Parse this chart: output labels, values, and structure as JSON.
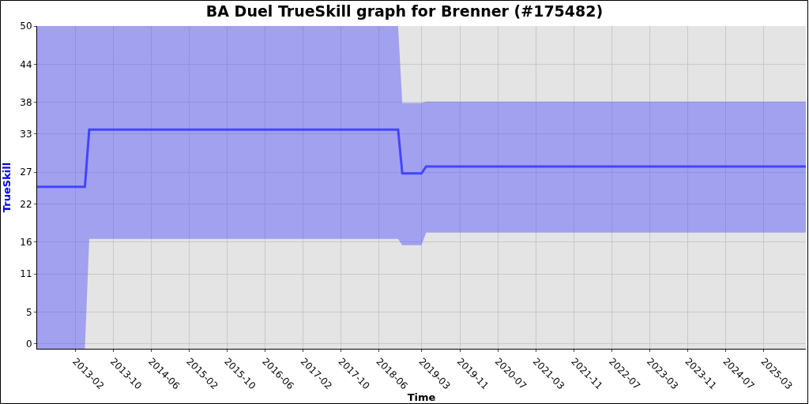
{
  "chart_data": {
    "type": "line",
    "title": "BA Duel TrueSkill graph for Brenner (#175482)",
    "xlabel": "Time",
    "ylabel": "TrueSkill",
    "x": [
      "2012-06-01",
      "2013-04-03",
      "2013-05-01",
      "2018-10-01",
      "2018-10-28",
      "2019-02-28",
      "2019-03-30",
      "2025-11-26"
    ],
    "series": [
      {
        "color": "#4444ff",
        "values": [
          24.7,
          24.7,
          33.7,
          33.7,
          26.8,
          26.8,
          27.9,
          27.9
        ],
        "lower": [
          -0.8,
          -0.8,
          16.5,
          16.5,
          15.5,
          15.5,
          17.5,
          17.5
        ],
        "upper": [
          50,
          50,
          50,
          50,
          37.9,
          37.9,
          38.1,
          38.1
        ]
      }
    ],
    "xlim": [
      "2012-06-01",
      "2025-11-26"
    ],
    "xticks": [
      "2013-02",
      "2013-10",
      "2014-06",
      "2015-02",
      "2015-10",
      "2016-06",
      "2017-02",
      "2017-10",
      "2018-06",
      "2019-03",
      "2019-11",
      "2020-07",
      "2021-03",
      "2021-11",
      "2022-07",
      "2023-03",
      "2023-11",
      "2024-07",
      "2025-03"
    ],
    "ylim": [
      -0.8,
      50
    ],
    "yticks": [
      0,
      5,
      11,
      16,
      22,
      27,
      33,
      38,
      44,
      50
    ],
    "grid": true
  }
}
